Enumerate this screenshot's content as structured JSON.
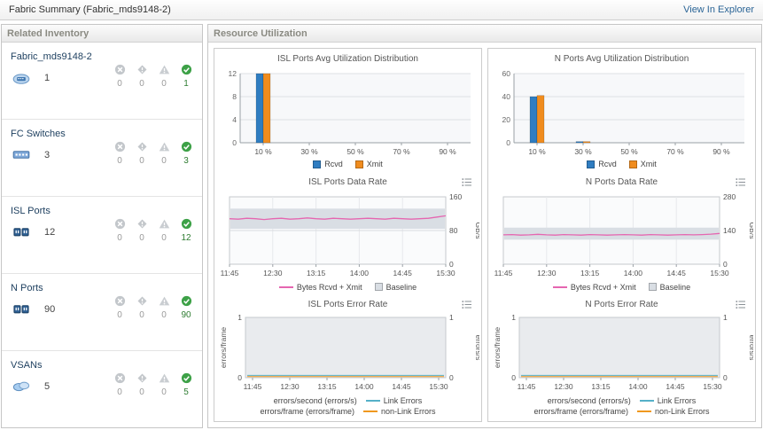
{
  "titlebar": {
    "title": "Fabric Summary (Fabric_mds9148-2)",
    "explorer_link": "View In Explorer"
  },
  "related_inventory": {
    "title": "Related Inventory",
    "status_columns": [
      "down",
      "unreachable",
      "warning",
      "ok"
    ],
    "items": [
      {
        "label": "Fabric_mds9148-2",
        "icon": "fabric-icon",
        "count": "1",
        "statuses": [
          "0",
          "0",
          "0",
          "1"
        ]
      },
      {
        "label": "FC Switches",
        "icon": "fc-switch-icon",
        "count": "3",
        "statuses": [
          "0",
          "0",
          "0",
          "3"
        ]
      },
      {
        "label": "ISL Ports",
        "icon": "isl-ports-icon",
        "count": "12",
        "statuses": [
          "0",
          "0",
          "0",
          "12"
        ]
      },
      {
        "label": "N Ports",
        "icon": "n-ports-icon",
        "count": "90",
        "statuses": [
          "0",
          "0",
          "0",
          "90"
        ]
      },
      {
        "label": "VSANs",
        "icon": "vsan-icon",
        "count": "5",
        "statuses": [
          "0",
          "0",
          "0",
          "5"
        ]
      }
    ]
  },
  "resource_utilization": {
    "title": "Resource Utilization"
  },
  "colors": {
    "rcvd_blue": "#2f7dc1",
    "xmit_orange": "#f08c1e",
    "data_rate_magenta": "#e566b0",
    "baseline_gray": "#d9dee4",
    "link_errors_teal": "#55b0c8",
    "non_link_errors_orange": "#f0981f",
    "ok_green": "#3da147",
    "link_blue": "#2a6496"
  },
  "chart_data": [
    {
      "type": "bar",
      "title": "ISL Ports Avg Utilization Distribution",
      "categories": [
        "10 %",
        "30 %",
        "50 %",
        "70 %",
        "90 %"
      ],
      "ylim": [
        0,
        12
      ],
      "yticks": [
        0,
        4,
        8,
        12
      ],
      "series": [
        {
          "name": "Rcvd",
          "color": "#2f7dc1",
          "values": [
            12,
            0,
            0,
            0,
            0
          ]
        },
        {
          "name": "Xmit",
          "color": "#f08c1e",
          "values": [
            12,
            0,
            0,
            0,
            0
          ]
        }
      ],
      "legend": [
        {
          "sample": "box",
          "color": "#2f7dc1",
          "label": "Rcvd"
        },
        {
          "sample": "box",
          "color": "#f08c1e",
          "label": "Xmit"
        }
      ]
    },
    {
      "type": "bar",
      "title": "N Ports Avg Utilization Distribution",
      "categories": [
        "10 %",
        "30 %",
        "50 %",
        "70 %",
        "90 %"
      ],
      "ylim": [
        0,
        60
      ],
      "yticks": [
        0,
        20,
        40,
        60
      ],
      "series": [
        {
          "name": "Rcvd",
          "color": "#2f7dc1",
          "values": [
            40,
            1,
            0,
            0,
            0
          ]
        },
        {
          "name": "Xmit",
          "color": "#f08c1e",
          "values": [
            41,
            1,
            0,
            0,
            0
          ]
        }
      ],
      "legend": [
        {
          "sample": "box",
          "color": "#2f7dc1",
          "label": "Rcvd"
        },
        {
          "sample": "box",
          "color": "#f08c1e",
          "label": "Xmit"
        }
      ]
    },
    {
      "type": "line",
      "title": "ISL Ports Data Rate",
      "xticks": [
        "11:45",
        "12:30",
        "13:15",
        "14:00",
        "14:45",
        "15:30"
      ],
      "ylim": [
        0,
        160
      ],
      "yticks": [
        0,
        80,
        160
      ],
      "ylabel": "GB/s",
      "baseline": [
        84,
        132
      ],
      "series": [
        {
          "name": "Bytes Rcvd + Xmit",
          "color": "#e566b0",
          "values": [
            108,
            107,
            109,
            108,
            106,
            108,
            109,
            107,
            108,
            110,
            108,
            107,
            109,
            108,
            107,
            108,
            109,
            108,
            107,
            109,
            108,
            107,
            108,
            109,
            112,
            115
          ]
        }
      ],
      "legend": [
        {
          "sample": "line",
          "color": "#e566b0",
          "label": "Bytes Rcvd + Xmit"
        },
        {
          "sample": "box",
          "color": "#d9dee4",
          "label": "Baseline"
        }
      ]
    },
    {
      "type": "line",
      "title": "N Ports Data Rate",
      "xticks": [
        "11:45",
        "12:30",
        "13:15",
        "14:00",
        "14:45",
        "15:30"
      ],
      "ylim": [
        0,
        280
      ],
      "yticks": [
        0,
        140,
        280
      ],
      "ylabel": "GB/s",
      "baseline": [
        102,
        152
      ],
      "series": [
        {
          "name": "Bytes Rcvd + Xmit",
          "color": "#e566b0",
          "values": [
            122,
            123,
            121,
            122,
            124,
            122,
            121,
            123,
            122,
            121,
            123,
            122,
            121,
            122,
            123,
            122,
            121,
            123,
            122,
            121,
            122,
            123,
            122,
            123,
            125,
            128
          ]
        }
      ],
      "legend": [
        {
          "sample": "line",
          "color": "#e566b0",
          "label": "Bytes Rcvd + Xmit"
        },
        {
          "sample": "box",
          "color": "#d9dee4",
          "label": "Baseline"
        }
      ]
    },
    {
      "type": "error",
      "title": "ISL Ports Error Rate",
      "xticks": [
        "11:45",
        "12:30",
        "13:15",
        "14:00",
        "14:45",
        "15:30"
      ],
      "ylim": [
        0,
        1
      ],
      "left_label": "errors/frame",
      "right_label": "errors/s",
      "series": [
        {
          "name": "Link Errors",
          "color": "#55b0c8",
          "values": [
            0,
            0,
            0,
            0,
            0,
            0
          ]
        },
        {
          "name": "non-Link Errors",
          "color": "#f0981f",
          "values": [
            0,
            0,
            0,
            0,
            0,
            0
          ]
        }
      ],
      "legend_layout": "rows",
      "legend": [
        {
          "text": "errors/second (errors/s)",
          "sample": "line",
          "color": "#55b0c8",
          "label": "Link Errors"
        },
        {
          "text": "errors/frame (errors/frame)",
          "sample": "line",
          "color": "#f0981f",
          "label": "non-Link Errors"
        }
      ]
    },
    {
      "type": "error",
      "title": "N Ports Error Rate",
      "xticks": [
        "11:45",
        "12:30",
        "13:15",
        "14:00",
        "14:45",
        "15:30"
      ],
      "ylim": [
        0,
        1
      ],
      "left_label": "errors/frame",
      "right_label": "errors/s",
      "series": [
        {
          "name": "Link Errors",
          "color": "#55b0c8",
          "values": [
            0,
            0,
            0,
            0,
            0,
            0
          ]
        },
        {
          "name": "non-Link Errors",
          "color": "#f0981f",
          "values": [
            0,
            0,
            0,
            0,
            0,
            0
          ]
        }
      ],
      "legend_layout": "rows",
      "legend": [
        {
          "text": "errors/second (errors/s)",
          "sample": "line",
          "color": "#55b0c8",
          "label": "Link Errors"
        },
        {
          "text": "errors/frame (errors/frame)",
          "sample": "line",
          "color": "#f0981f",
          "label": "non-Link Errors"
        }
      ]
    }
  ]
}
